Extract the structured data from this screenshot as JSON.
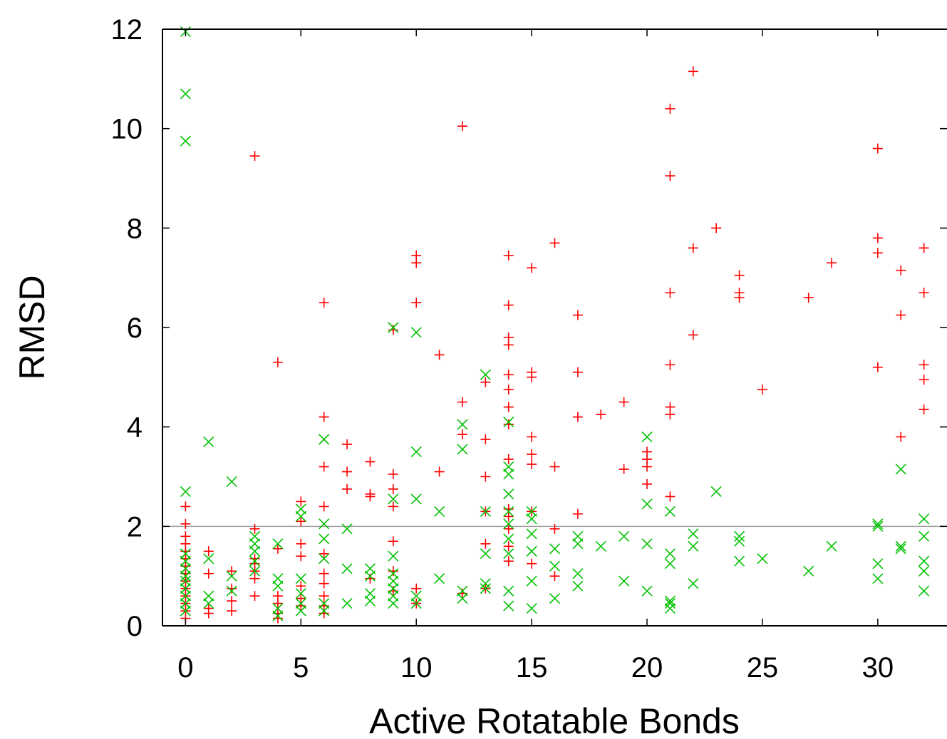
{
  "chart_data": {
    "type": "scatter",
    "title": "",
    "xlabel": "Active Rotatable Bonds",
    "ylabel": "RMSD",
    "xlim": [
      -1,
      33
    ],
    "ylim": [
      0,
      12
    ],
    "xticks": [
      0,
      5,
      10,
      15,
      20,
      25,
      30
    ],
    "yticks": [
      0,
      2,
      4,
      6,
      8,
      10,
      12
    ],
    "grid": false,
    "legend": "none",
    "reference_line": {
      "y": 2,
      "color": "#a0a0a0"
    },
    "series": [
      {
        "marker": "plus",
        "color": "#ff0000",
        "points": [
          [
            0,
            0.15
          ],
          [
            0,
            0.3
          ],
          [
            0,
            0.45
          ],
          [
            0,
            0.6
          ],
          [
            0,
            0.75
          ],
          [
            0,
            0.9
          ],
          [
            0,
            1.05
          ],
          [
            0,
            1.2
          ],
          [
            0,
            1.35
          ],
          [
            0,
            1.5
          ],
          [
            0,
            1.65
          ],
          [
            0,
            1.8
          ],
          [
            0,
            2.05
          ],
          [
            0,
            2.4
          ],
          [
            1,
            0.25
          ],
          [
            1,
            0.35
          ],
          [
            1,
            1.05
          ],
          [
            1,
            1.5
          ],
          [
            2,
            0.3
          ],
          [
            2,
            0.5
          ],
          [
            2,
            0.75
          ],
          [
            2,
            1.1
          ],
          [
            3,
            0.6
          ],
          [
            3,
            0.95
          ],
          [
            3,
            1.1
          ],
          [
            3,
            1.25
          ],
          [
            3,
            1.35
          ],
          [
            3,
            1.95
          ],
          [
            3,
            9.45
          ],
          [
            4,
            0.15
          ],
          [
            4,
            0.25
          ],
          [
            4,
            0.45
          ],
          [
            4,
            0.6
          ],
          [
            4,
            1.55
          ],
          [
            4,
            5.3
          ],
          [
            5,
            0.4
          ],
          [
            5,
            0.55
          ],
          [
            5,
            0.8
          ],
          [
            5,
            1.4
          ],
          [
            5,
            1.65
          ],
          [
            5,
            2.1
          ],
          [
            5,
            2.5
          ],
          [
            6,
            0.25
          ],
          [
            6,
            0.4
          ],
          [
            6,
            0.6
          ],
          [
            6,
            0.85
          ],
          [
            6,
            1.05
          ],
          [
            6,
            1.45
          ],
          [
            6,
            2.4
          ],
          [
            6,
            3.2
          ],
          [
            6,
            4.2
          ],
          [
            6,
            6.5
          ],
          [
            7,
            2.75
          ],
          [
            7,
            3.1
          ],
          [
            7,
            3.65
          ],
          [
            8,
            0.95
          ],
          [
            8,
            2.6
          ],
          [
            8,
            2.65
          ],
          [
            8,
            3.3
          ],
          [
            9,
            0.7
          ],
          [
            9,
            1.1
          ],
          [
            9,
            1.7
          ],
          [
            9,
            2.4
          ],
          [
            9,
            2.75
          ],
          [
            9,
            3.05
          ],
          [
            9,
            5.95
          ],
          [
            10,
            0.45
          ],
          [
            10,
            0.75
          ],
          [
            10,
            6.5
          ],
          [
            10,
            7.3
          ],
          [
            10,
            7.45
          ],
          [
            11,
            3.1
          ],
          [
            11,
            5.45
          ],
          [
            12,
            0.65
          ],
          [
            12,
            3.85
          ],
          [
            12,
            4.5
          ],
          [
            12,
            10.05
          ],
          [
            13,
            0.75
          ],
          [
            13,
            1.65
          ],
          [
            13,
            2.3
          ],
          [
            13,
            3.0
          ],
          [
            13,
            3.75
          ],
          [
            13,
            4.9
          ],
          [
            14,
            1.3
          ],
          [
            14,
            1.6
          ],
          [
            14,
            1.95
          ],
          [
            14,
            2.2
          ],
          [
            14,
            2.35
          ],
          [
            14,
            3.35
          ],
          [
            14,
            4.05
          ],
          [
            14,
            4.4
          ],
          [
            14,
            4.75
          ],
          [
            14,
            5.05
          ],
          [
            14,
            5.65
          ],
          [
            14,
            5.8
          ],
          [
            14,
            6.45
          ],
          [
            14,
            7.45
          ],
          [
            15,
            1.25
          ],
          [
            15,
            2.3
          ],
          [
            15,
            3.25
          ],
          [
            15,
            3.45
          ],
          [
            15,
            3.8
          ],
          [
            15,
            5.0
          ],
          [
            15,
            5.1
          ],
          [
            15,
            7.2
          ],
          [
            16,
            1.0
          ],
          [
            16,
            1.95
          ],
          [
            16,
            3.2
          ],
          [
            16,
            7.7
          ],
          [
            17,
            2.25
          ],
          [
            17,
            4.2
          ],
          [
            17,
            5.1
          ],
          [
            17,
            6.25
          ],
          [
            18,
            4.25
          ],
          [
            19,
            3.15
          ],
          [
            19,
            4.5
          ],
          [
            20,
            2.85
          ],
          [
            20,
            3.2
          ],
          [
            20,
            3.35
          ],
          [
            20,
            3.5
          ],
          [
            21,
            2.6
          ],
          [
            21,
            4.25
          ],
          [
            21,
            4.4
          ],
          [
            21,
            5.25
          ],
          [
            21,
            6.7
          ],
          [
            21,
            9.05
          ],
          [
            21,
            10.4
          ],
          [
            22,
            5.85
          ],
          [
            22,
            7.6
          ],
          [
            22,
            11.15
          ],
          [
            23,
            8.0
          ],
          [
            24,
            6.6
          ],
          [
            24,
            6.7
          ],
          [
            24,
            7.05
          ],
          [
            25,
            4.75
          ],
          [
            27,
            6.6
          ],
          [
            28,
            7.3
          ],
          [
            30,
            5.2
          ],
          [
            30,
            7.5
          ],
          [
            30,
            7.8
          ],
          [
            30,
            9.6
          ],
          [
            31,
            3.8
          ],
          [
            31,
            6.25
          ],
          [
            31,
            7.15
          ],
          [
            32,
            4.35
          ],
          [
            32,
            4.95
          ],
          [
            32,
            5.25
          ],
          [
            32,
            6.7
          ],
          [
            32,
            7.6
          ]
        ]
      },
      {
        "marker": "cross",
        "color": "#00c000",
        "points": [
          [
            0,
            0.3
          ],
          [
            0,
            0.45
          ],
          [
            0,
            0.6
          ],
          [
            0,
            0.75
          ],
          [
            0,
            0.9
          ],
          [
            0,
            1.0
          ],
          [
            0,
            1.15
          ],
          [
            0,
            1.3
          ],
          [
            0,
            1.45
          ],
          [
            0,
            2.7
          ],
          [
            0,
            9.75
          ],
          [
            0,
            10.7
          ],
          [
            0,
            11.95
          ],
          [
            1,
            0.45
          ],
          [
            1,
            0.6
          ],
          [
            1,
            1.35
          ],
          [
            1,
            3.7
          ],
          [
            2,
            0.7
          ],
          [
            2,
            1.0
          ],
          [
            2,
            2.9
          ],
          [
            3,
            1.1
          ],
          [
            3,
            1.3
          ],
          [
            3,
            1.5
          ],
          [
            3,
            1.65
          ],
          [
            3,
            1.8
          ],
          [
            4,
            0.2
          ],
          [
            4,
            0.35
          ],
          [
            4,
            0.8
          ],
          [
            4,
            0.95
          ],
          [
            4,
            1.65
          ],
          [
            5,
            0.3
          ],
          [
            5,
            0.45
          ],
          [
            5,
            0.65
          ],
          [
            5,
            0.95
          ],
          [
            5,
            2.2
          ],
          [
            5,
            2.35
          ],
          [
            6,
            0.3
          ],
          [
            6,
            0.45
          ],
          [
            6,
            1.35
          ],
          [
            6,
            1.75
          ],
          [
            6,
            2.05
          ],
          [
            6,
            3.75
          ],
          [
            7,
            0.45
          ],
          [
            7,
            1.15
          ],
          [
            7,
            1.95
          ],
          [
            8,
            0.5
          ],
          [
            8,
            0.65
          ],
          [
            8,
            1.0
          ],
          [
            8,
            1.15
          ],
          [
            9,
            0.45
          ],
          [
            9,
            0.6
          ],
          [
            9,
            0.75
          ],
          [
            9,
            0.9
          ],
          [
            9,
            1.05
          ],
          [
            9,
            1.4
          ],
          [
            9,
            2.55
          ],
          [
            9,
            6.0
          ],
          [
            10,
            0.45
          ],
          [
            10,
            0.6
          ],
          [
            10,
            2.55
          ],
          [
            10,
            3.5
          ],
          [
            10,
            5.9
          ],
          [
            11,
            0.95
          ],
          [
            11,
            2.3
          ],
          [
            12,
            0.55
          ],
          [
            12,
            0.7
          ],
          [
            12,
            3.55
          ],
          [
            12,
            4.05
          ],
          [
            13,
            0.75
          ],
          [
            13,
            0.85
          ],
          [
            13,
            1.45
          ],
          [
            13,
            2.3
          ],
          [
            13,
            5.05
          ],
          [
            14,
            0.4
          ],
          [
            14,
            0.7
          ],
          [
            14,
            1.45
          ],
          [
            14,
            1.75
          ],
          [
            14,
            2.05
          ],
          [
            14,
            2.3
          ],
          [
            14,
            2.65
          ],
          [
            14,
            3.05
          ],
          [
            14,
            3.2
          ],
          [
            14,
            4.1
          ],
          [
            15,
            0.35
          ],
          [
            15,
            0.9
          ],
          [
            15,
            1.5
          ],
          [
            15,
            1.85
          ],
          [
            15,
            2.15
          ],
          [
            15,
            2.3
          ],
          [
            16,
            0.55
          ],
          [
            16,
            1.2
          ],
          [
            16,
            1.55
          ],
          [
            17,
            0.8
          ],
          [
            17,
            1.05
          ],
          [
            17,
            1.65
          ],
          [
            17,
            1.8
          ],
          [
            18,
            1.6
          ],
          [
            19,
            0.9
          ],
          [
            19,
            1.8
          ],
          [
            20,
            0.7
          ],
          [
            20,
            1.65
          ],
          [
            20,
            2.45
          ],
          [
            20,
            3.8
          ],
          [
            21,
            0.35
          ],
          [
            21,
            0.45
          ],
          [
            21,
            0.5
          ],
          [
            21,
            1.25
          ],
          [
            21,
            1.45
          ],
          [
            21,
            2.3
          ],
          [
            22,
            0.85
          ],
          [
            22,
            1.6
          ],
          [
            22,
            1.85
          ],
          [
            23,
            2.7
          ],
          [
            24,
            1.3
          ],
          [
            24,
            1.7
          ],
          [
            24,
            1.8
          ],
          [
            25,
            1.35
          ],
          [
            27,
            1.1
          ],
          [
            28,
            1.6
          ],
          [
            30,
            0.95
          ],
          [
            30,
            1.25
          ],
          [
            30,
            2.0
          ],
          [
            30,
            2.05
          ],
          [
            31,
            1.55
          ],
          [
            31,
            1.6
          ],
          [
            31,
            3.15
          ],
          [
            32,
            0.7
          ],
          [
            32,
            1.1
          ],
          [
            32,
            1.3
          ],
          [
            32,
            1.8
          ],
          [
            32,
            2.15
          ]
        ]
      }
    ]
  }
}
